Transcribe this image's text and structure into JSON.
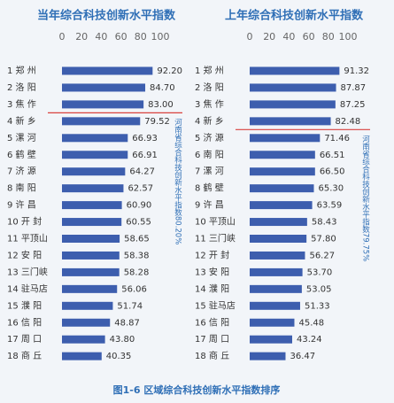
{
  "chart_data": [
    {
      "type": "hbar",
      "title": "当年综合科技创新水平指数",
      "categories": [
        "1 郑 州",
        "2 洛 阳",
        "3 焦 作",
        "4 新 乡",
        "5 漯 河",
        "6 鹤 壁",
        "7 济 源",
        "8 南 阳",
        "9 许 昌",
        "10 开 封",
        "11 平顶山",
        "12 安 阳",
        "13 三门峡",
        "14 驻马店",
        "15 濮 阳",
        "16 信 阳",
        "17 周 口",
        "18 商 丘"
      ],
      "values": [
        92.2,
        84.7,
        83,
        79.52,
        66.93,
        66.91,
        64.27,
        62.57,
        60.9,
        60.55,
        58.65,
        58.38,
        58.28,
        56.06,
        51.74,
        48.87,
        43.8,
        40.35
      ],
      "value_labels": [
        "92.20",
        "84.70",
        "83.00",
        "79.52",
        "66.93",
        "66.91",
        "64.27",
        "62.57",
        "60.90",
        "60.55",
        "58.65",
        "58.38",
        "58.28",
        "56.06",
        "51.74",
        "48.87",
        "43.80",
        "40.35"
      ],
      "color": "#3d5eae",
      "xlim": [
        0,
        100
      ],
      "xticks": [
        0,
        20,
        40,
        60,
        80,
        100
      ],
      "reference": {
        "value": 80.2,
        "label": "河南省综合科技创新水平指数80.20%",
        "color": "#d9413e"
      }
    },
    {
      "type": "hbar",
      "title": "上年综合科技创新水平指数",
      "categories": [
        "1 郑 州",
        "2 洛 阳",
        "3 焦 作",
        "4 新 乡",
        "5 济 源",
        "6 南 阳",
        "7 漯 河",
        "8 鹤 壁",
        "9 许 昌",
        "10 平顶山",
        "11 三门峡",
        "12 开 封",
        "13 安 阳",
        "14 濮 阳",
        "15 驻马店",
        "16 信 阳",
        "17 周 口",
        "18 商 丘"
      ],
      "values": [
        91.32,
        87.87,
        87.25,
        82.48,
        71.46,
        66.51,
        66.5,
        65.3,
        63.59,
        58.43,
        57.8,
        56.27,
        53.7,
        53.05,
        51.33,
        45.48,
        43.24,
        36.47
      ],
      "value_labels": [
        "91.32",
        "87.87",
        "87.25",
        "82.48",
        "71.46",
        "66.51",
        "66.50",
        "65.30",
        "63.59",
        "58.43",
        "57.80",
        "56.27",
        "53.70",
        "53.05",
        "51.33",
        "45.48",
        "43.24",
        "36.47"
      ],
      "color": "#3d5eae",
      "xlim": [
        0,
        100
      ],
      "xticks": [
        0,
        20,
        40,
        60,
        80,
        100
      ],
      "reference": {
        "value": 79.75,
        "label": "河南省综合科技创新水平指数79.75%",
        "color": "#d9413e"
      }
    }
  ],
  "caption": "图1-6 区域综合科技创新水平指数排序"
}
